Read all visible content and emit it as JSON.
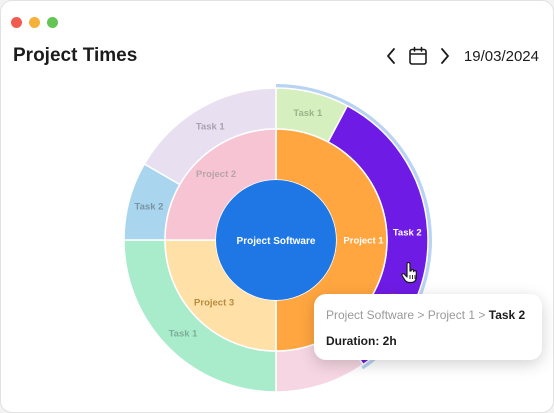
{
  "window": {
    "controls": [
      {
        "name": "close",
        "color": "#f15b50"
      },
      {
        "name": "minimize",
        "color": "#f5b13a"
      },
      {
        "name": "maximize",
        "color": "#62c554"
      }
    ]
  },
  "header": {
    "title": "Project Times",
    "date": "19/03/2024",
    "prev_icon": "chevron-left-icon",
    "next_icon": "chevron-right-icon",
    "calendar_icon": "calendar-icon"
  },
  "chart_data": {
    "type": "sunburst",
    "center": {
      "label": "Project Software",
      "color": "#1f77e5"
    },
    "projects": [
      {
        "label": "Project 1",
        "color": "#ffa640",
        "tasks": [
          {
            "label": "Task 1",
            "color": "#d6efbe"
          },
          {
            "label": "Task 2",
            "color": "#6f1be6",
            "highlighted": true
          },
          {
            "label": "",
            "color": "#f6d6e2"
          }
        ]
      },
      {
        "label": "Project 3",
        "color": "#ffe1a8",
        "tasks": [
          {
            "label": "Task 1",
            "color": "#a8eccc"
          }
        ]
      },
      {
        "label": "Project 2",
        "color": "#f7c4d4",
        "tasks": [
          {
            "label": "Task 2",
            "color": "#a9d6ee"
          },
          {
            "label": "Task 1",
            "color": "#e8e0f0"
          }
        ]
      }
    ]
  },
  "tooltip": {
    "crumb_prefix": "Project Software > Project 1",
    "crumb_separator": " > ",
    "crumb_last": "Task 2",
    "duration": "Duration: 2h"
  }
}
